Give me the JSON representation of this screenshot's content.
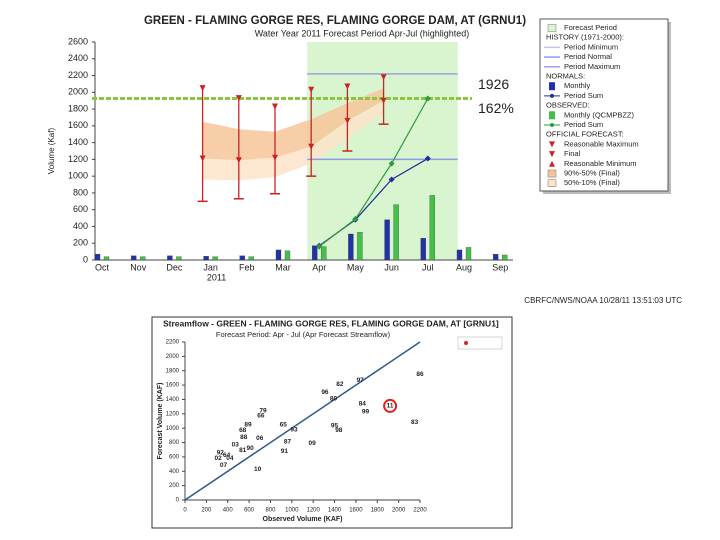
{
  "chart_data": [
    {
      "type": "bar",
      "title": "GREEN - FLAMING GORGE RES, FLAMING GORGE DAM, AT (GRNU1)",
      "subtitle": "Water Year 2011 Forecast Period Apr-Jul (highlighted)",
      "y_label": "Volume (Kaf)",
      "categories": [
        "Oct",
        "Nov",
        "Dec",
        "Jan",
        "Feb",
        "Mar",
        "Apr",
        "May",
        "Jun",
        "Jul",
        "Aug",
        "Sep"
      ],
      "year_label": "2011",
      "ylim": [
        0,
        2600
      ],
      "yticks": [
        0,
        200,
        400,
        600,
        800,
        1000,
        1200,
        1400,
        1600,
        1800,
        2000,
        2200,
        2400,
        2600
      ],
      "highlight": {
        "name": "Forecast Period",
        "range": [
          6,
          9
        ],
        "color": "#d8f5d0"
      },
      "history": {
        "heading": "HISTORY (1971-2000):",
        "lines": [
          {
            "name": "Period Minimum",
            "color": "#c9c3ee",
            "value": null
          },
          {
            "name": "Period Normal",
            "color": "#8a9be8",
            "value": 1200
          },
          {
            "name": "Period Maximum",
            "color": "#9f9fe0",
            "value": 2220
          }
        ]
      },
      "normals": {
        "heading": "NORMALS:",
        "monthly": {
          "name": "Monthly",
          "color": "#2233aa",
          "values": [
            70,
            50,
            50,
            45,
            50,
            120,
            170,
            310,
            480,
            260,
            120,
            70
          ]
        },
        "period_sum": {
          "name": "Period Sum",
          "color": "#1f2f9a",
          "values": [
            null,
            null,
            null,
            null,
            null,
            null,
            170,
            480,
            960,
            1210,
            null,
            null
          ]
        }
      },
      "observed": {
        "heading": "OBSERVED:",
        "monthly": {
          "name": "Monthly (QCMPBZZ)",
          "color": "#44c04a",
          "values": [
            40,
            40,
            40,
            40,
            40,
            110,
            160,
            330,
            660,
            770,
            150,
            60
          ]
        },
        "period_sum": {
          "name": "Period Sum",
          "color": "#2f9a3a",
          "values": [
            null,
            null,
            null,
            null,
            null,
            null,
            160,
            490,
            1150,
            1926,
            null,
            null
          ]
        }
      },
      "forecast": {
        "heading": "OFFICIAL FORECAST:",
        "color": "#cc2222",
        "max": {
          "name": "Reasonable Maximum",
          "values": [
            null,
            null,
            null,
            2050,
            1930,
            1830,
            2030,
            2070,
            2180,
            null,
            null,
            null
          ]
        },
        "final": {
          "name": "Final",
          "values": [
            null,
            null,
            null,
            1210,
            1190,
            1220,
            1350,
            1660,
            1900,
            null,
            null,
            null
          ]
        },
        "min": {
          "name": "Reasonable Minimum",
          "values": [
            null,
            null,
            null,
            700,
            730,
            790,
            1000,
            1300,
            1620,
            null,
            null,
            null
          ]
        },
        "band_high": {
          "name": "90%-50% (Final)",
          "color": "#f7c59a",
          "values": [
            null,
            null,
            null,
            1650,
            1560,
            1530,
            1680,
            1870,
            2050,
            null,
            null,
            null
          ]
        },
        "band_low": {
          "name": "50%-10% (Final)",
          "color": "#fde3c8",
          "values": [
            null,
            null,
            null,
            960,
            950,
            990,
            1150,
            1450,
            1750,
            null,
            null,
            null
          ]
        }
      },
      "reference": {
        "value": 1926,
        "color": "#8cc63f"
      },
      "percent_label": "162%",
      "footnote": "CBRFC/NWS/NOAA 10/28/11 13:51:03 UTC"
    },
    {
      "type": "scatter",
      "title": "Streamflow - GREEN - FLAMING GORGE RES, FLAMING GORGE DAM, AT [GRNU1]",
      "subtitle": "Forecast Period: Apr - Jul (Apr Forecast Streamflow)",
      "x_label": "Observed Volume (KAF)",
      "y_label": "Forecast Volume (KAF)",
      "xlim": [
        0,
        2200
      ],
      "ylim": [
        0,
        2200
      ],
      "xticks": [
        0,
        200,
        400,
        600,
        800,
        1000,
        1200,
        1400,
        1600,
        1800,
        2000,
        2200
      ],
      "yticks": [
        0,
        200,
        400,
        600,
        800,
        1000,
        1200,
        1400,
        1600,
        1800,
        2000,
        2200
      ],
      "color": "#dd2222",
      "line_color": "#2a5a8a",
      "points": [
        {
          "label": "86",
          "x": 2200,
          "y": 1750
        },
        {
          "label": "97",
          "x": 1640,
          "y": 1670
        },
        {
          "label": "82",
          "x": 1450,
          "y": 1610
        },
        {
          "label": "96",
          "x": 1310,
          "y": 1500
        },
        {
          "label": "80",
          "x": 1390,
          "y": 1410
        },
        {
          "label": "84",
          "x": 1660,
          "y": 1340
        },
        {
          "label": "99",
          "x": 1690,
          "y": 1230
        },
        {
          "label": "11",
          "x": 1920,
          "y": 1310,
          "highlight": true
        },
        {
          "label": "83",
          "x": 2150,
          "y": 1080
        },
        {
          "label": "79",
          "x": 730,
          "y": 1240
        },
        {
          "label": "66",
          "x": 710,
          "y": 1170
        },
        {
          "label": "89",
          "x": 590,
          "y": 1050
        },
        {
          "label": "65",
          "x": 920,
          "y": 1050
        },
        {
          "label": "93",
          "x": 1020,
          "y": 980
        },
        {
          "label": "95",
          "x": 1400,
          "y": 1030
        },
        {
          "label": "98",
          "x": 1440,
          "y": 970
        },
        {
          "label": "68",
          "x": 540,
          "y": 970
        },
        {
          "label": "88",
          "x": 550,
          "y": 870
        },
        {
          "label": "06",
          "x": 700,
          "y": 860
        },
        {
          "label": "87",
          "x": 960,
          "y": 810
        },
        {
          "label": "09",
          "x": 1190,
          "y": 790
        },
        {
          "label": "03",
          "x": 470,
          "y": 770
        },
        {
          "label": "81",
          "x": 540,
          "y": 690
        },
        {
          "label": "90",
          "x": 610,
          "y": 720
        },
        {
          "label": "92",
          "x": 330,
          "y": 660
        },
        {
          "label": "64",
          "x": 390,
          "y": 620
        },
        {
          "label": "02",
          "x": 310,
          "y": 580
        },
        {
          "label": "04",
          "x": 420,
          "y": 580
        },
        {
          "label": "07",
          "x": 360,
          "y": 480
        },
        {
          "label": "91",
          "x": 930,
          "y": 680
        },
        {
          "label": "10",
          "x": 680,
          "y": 430
        }
      ]
    }
  ]
}
